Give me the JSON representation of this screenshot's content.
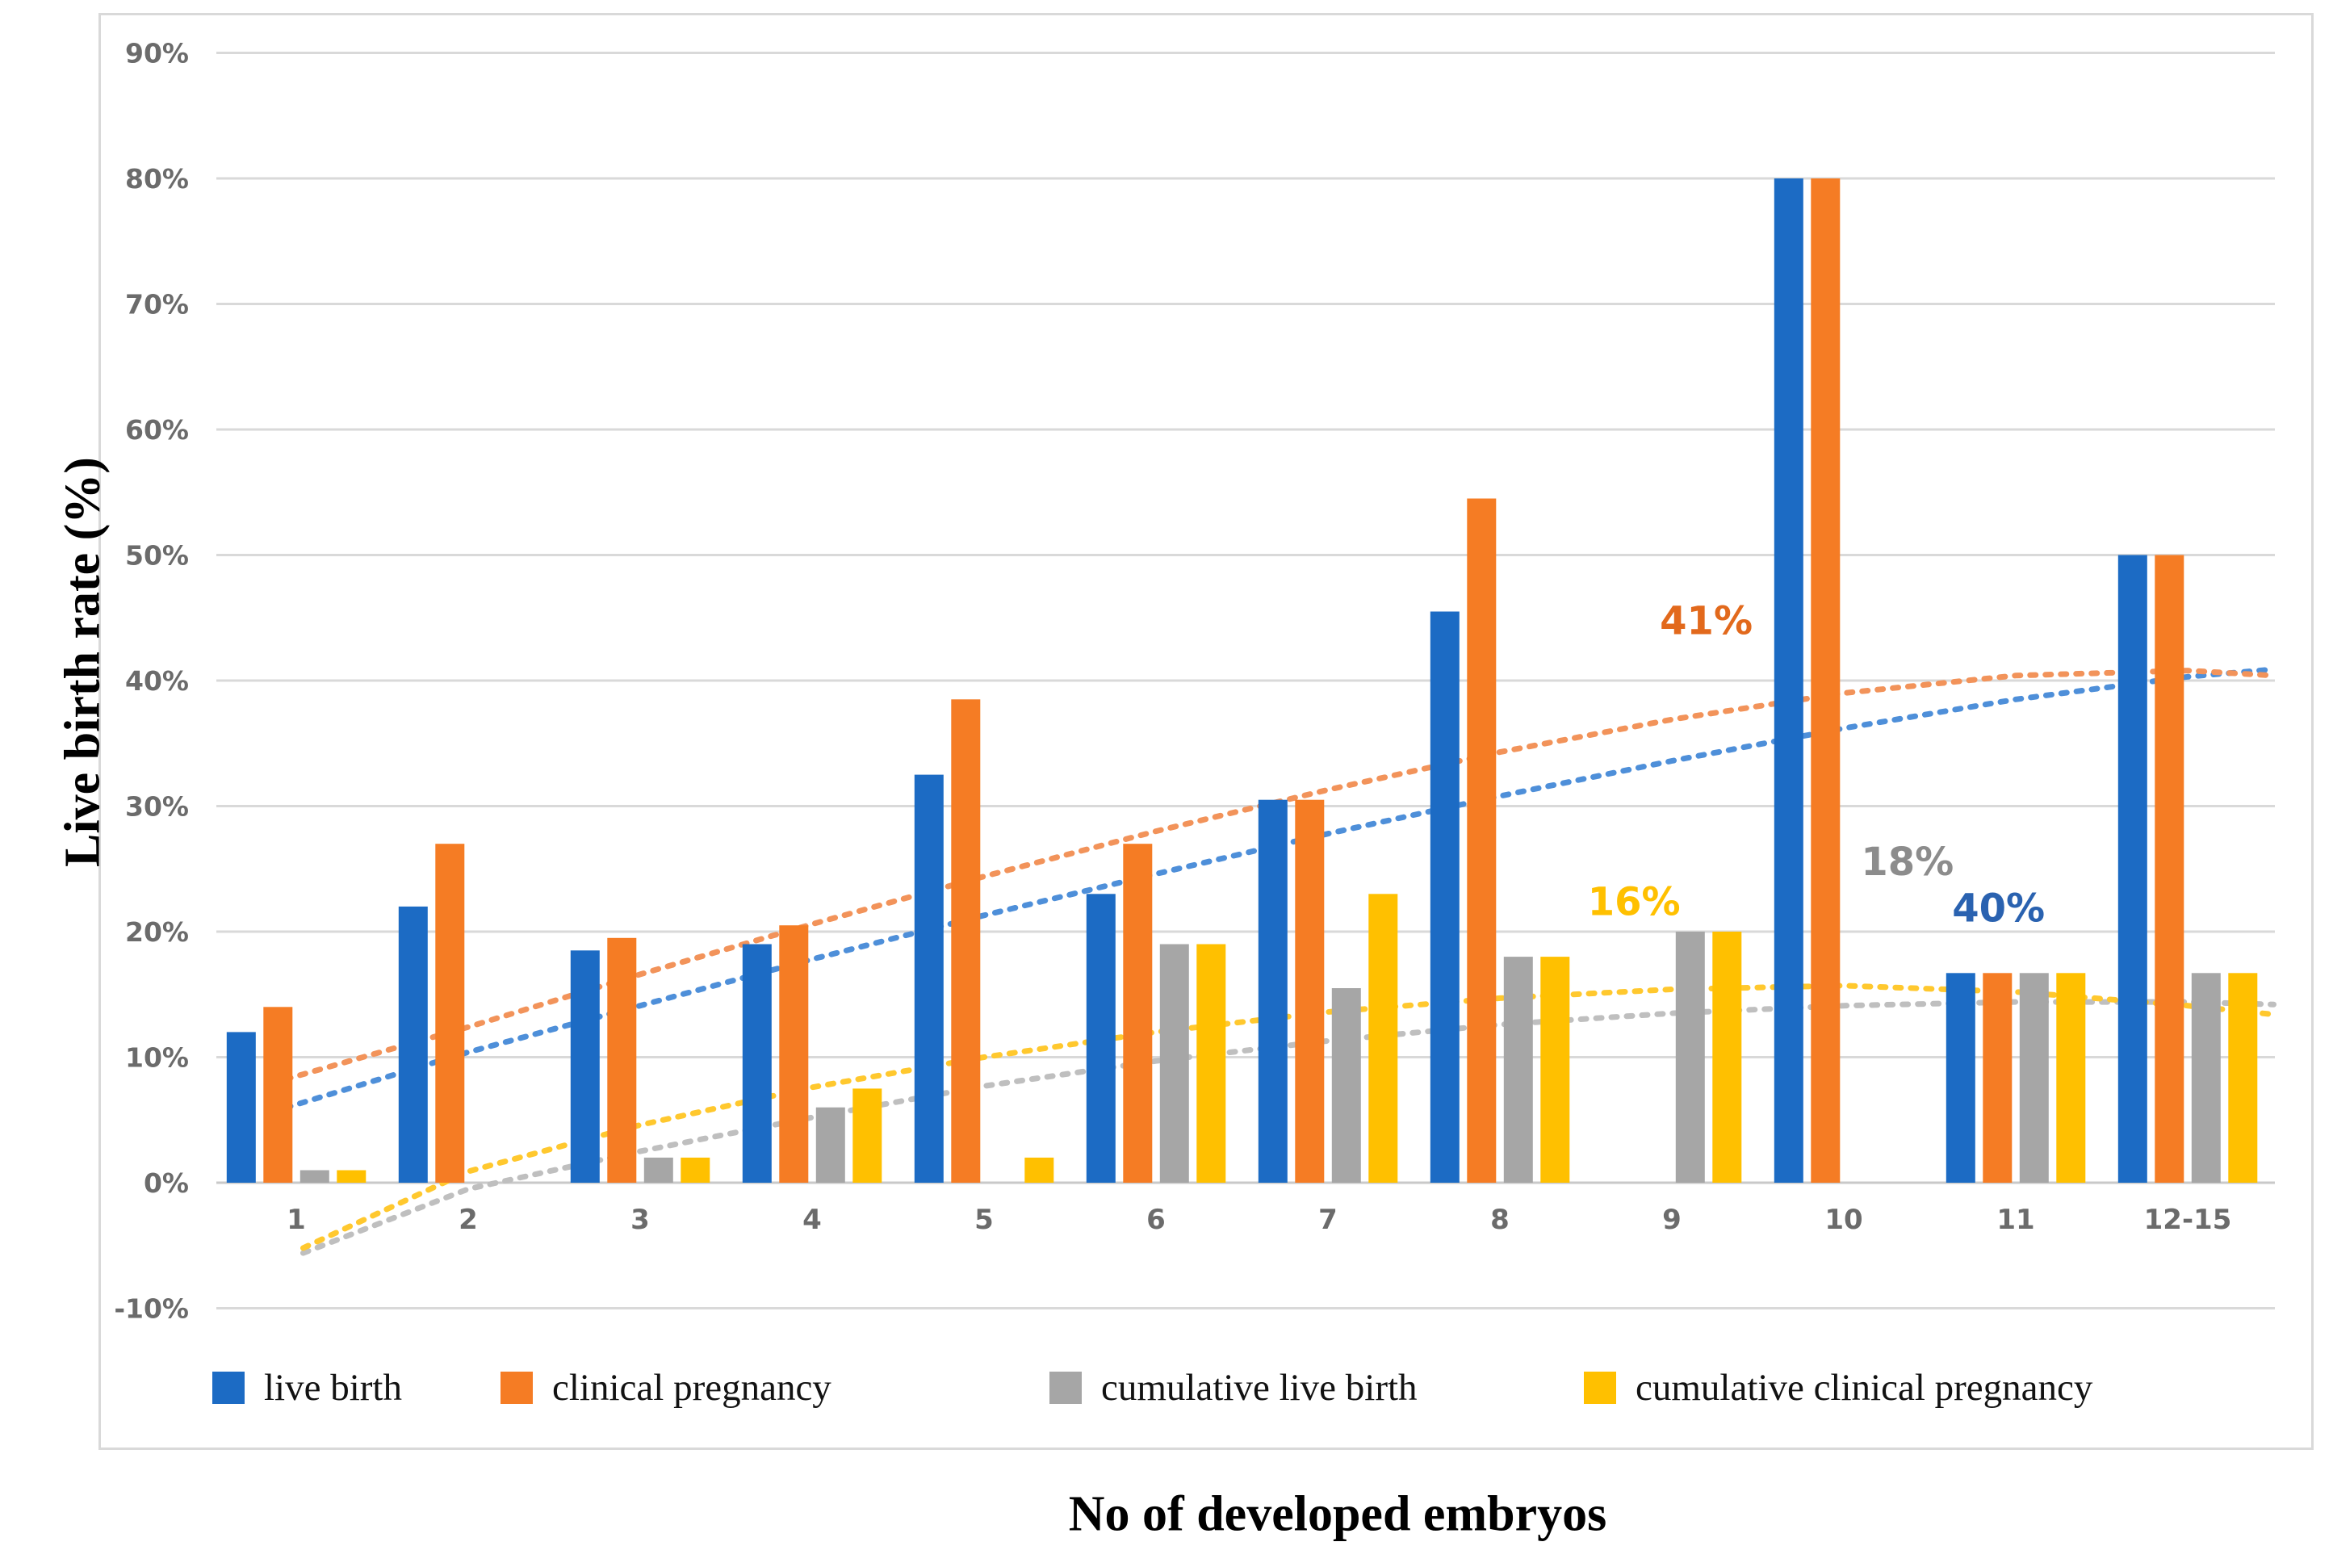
{
  "figure": {
    "y_axis_title": "Live birth rate (%)",
    "x_axis_title": "No of developed embryos"
  },
  "chart_data": {
    "type": "bar",
    "title": "",
    "xlabel": "No of developed embryos",
    "ylabel": "Live birth rate (%)",
    "ylim": [
      -10,
      90
    ],
    "y_ticks": [
      90,
      80,
      70,
      60,
      50,
      40,
      30,
      20,
      10,
      0,
      -10
    ],
    "y_tick_suffix": "%",
    "grid": true,
    "legend_position": "bottom",
    "categories": [
      "1",
      "2",
      "3",
      "4",
      "5",
      "6",
      "7",
      "8",
      "9",
      "10",
      "11",
      "12-15"
    ],
    "series": [
      {
        "name": "live birth",
        "color": "#1C6BC4",
        "values": [
          12,
          22,
          18.5,
          19,
          32.5,
          23,
          30.5,
          45.5,
          0,
          80,
          16.7,
          50
        ]
      },
      {
        "name": "clinical pregnancy",
        "color": "#F57C24",
        "values": [
          14,
          27,
          19.5,
          20.5,
          38.5,
          27,
          30.5,
          54.5,
          0,
          80,
          16.7,
          50
        ]
      },
      {
        "name": "cumulative live birth",
        "color": "#A6A6A6",
        "values": [
          1,
          0,
          2,
          6,
          0,
          19,
          15.5,
          18,
          20,
          0,
          16.7,
          16.7
        ]
      },
      {
        "name": "cumulative clinical pregnancy",
        "color": "#FFC000",
        "values": [
          1,
          0,
          2,
          7.5,
          2,
          19,
          23,
          18,
          20,
          0,
          16.7,
          16.7
        ]
      }
    ],
    "trendlines": [
      {
        "series": "live birth",
        "color": "#4E8FD9",
        "style": "dotted",
        "points": [
          [
            0.85,
            5.6
          ],
          [
            2,
            10.4
          ],
          [
            3,
            14.1
          ],
          [
            4,
            17.8
          ],
          [
            5,
            21.3
          ],
          [
            6,
            24.6
          ],
          [
            7,
            27.8
          ],
          [
            8,
            30.8
          ],
          [
            9,
            33.6
          ],
          [
            10,
            36.2
          ],
          [
            11,
            38.5
          ],
          [
            12,
            40.3
          ],
          [
            12.5,
            40.9
          ]
        ]
      },
      {
        "series": "clinical pregnancy",
        "color": "#F2935A",
        "style": "dotted",
        "points": [
          [
            0.85,
            7.9
          ],
          [
            2,
            12.4
          ],
          [
            3,
            16.6
          ],
          [
            4,
            20.6
          ],
          [
            5,
            24.4
          ],
          [
            6,
            28.0
          ],
          [
            7,
            31.3
          ],
          [
            8,
            34.3
          ],
          [
            9,
            36.9
          ],
          [
            10,
            39.0
          ],
          [
            11,
            40.4
          ],
          [
            12,
            40.8
          ],
          [
            12.5,
            40.4
          ]
        ]
      },
      {
        "series": "cumulative live birth",
        "color": "#BFBFBF",
        "style": "dotted",
        "points": [
          [
            1.04,
            -5.6
          ],
          [
            2,
            -0.5
          ],
          [
            3,
            2.5
          ],
          [
            4,
            5.2
          ],
          [
            5,
            7.7
          ],
          [
            6,
            9.7
          ],
          [
            7,
            11.3
          ],
          [
            8,
            12.6
          ],
          [
            9,
            13.5
          ],
          [
            10,
            14.1
          ],
          [
            11,
            14.4
          ],
          [
            12,
            14.4
          ],
          [
            12.5,
            14.2
          ]
        ]
      },
      {
        "series": "cumulative clinical pregnancy",
        "color": "#FFC82E",
        "style": "dotted",
        "points": [
          [
            1.04,
            -5.2
          ],
          [
            2,
            0.9
          ],
          [
            3,
            4.6
          ],
          [
            4,
            7.6
          ],
          [
            5,
            10.0
          ],
          [
            6,
            12.0
          ],
          [
            7,
            13.6
          ],
          [
            8,
            14.7
          ],
          [
            9,
            15.4
          ],
          [
            10,
            15.7
          ],
          [
            11,
            15.2
          ],
          [
            12,
            14.1
          ],
          [
            12.5,
            13.4
          ]
        ]
      }
    ],
    "annotations": [
      {
        "text": "41%",
        "color": "#E2691C",
        "x": 9.2,
        "y": 44.8
      },
      {
        "text": "16%",
        "color": "#FFC000",
        "x": 8.78,
        "y": 22.4
      },
      {
        "text": "18%",
        "color": "#8C8C8C",
        "x": 10.37,
        "y": 25.6
      },
      {
        "text": "40%",
        "color": "#2A62B0",
        "x": 10.9,
        "y": 21.9
      }
    ],
    "style": {
      "gridline_color": "#D9D9D9",
      "axis_line_color": "#C9C9C9",
      "tick_label_color": "#6B6B6B"
    }
  }
}
